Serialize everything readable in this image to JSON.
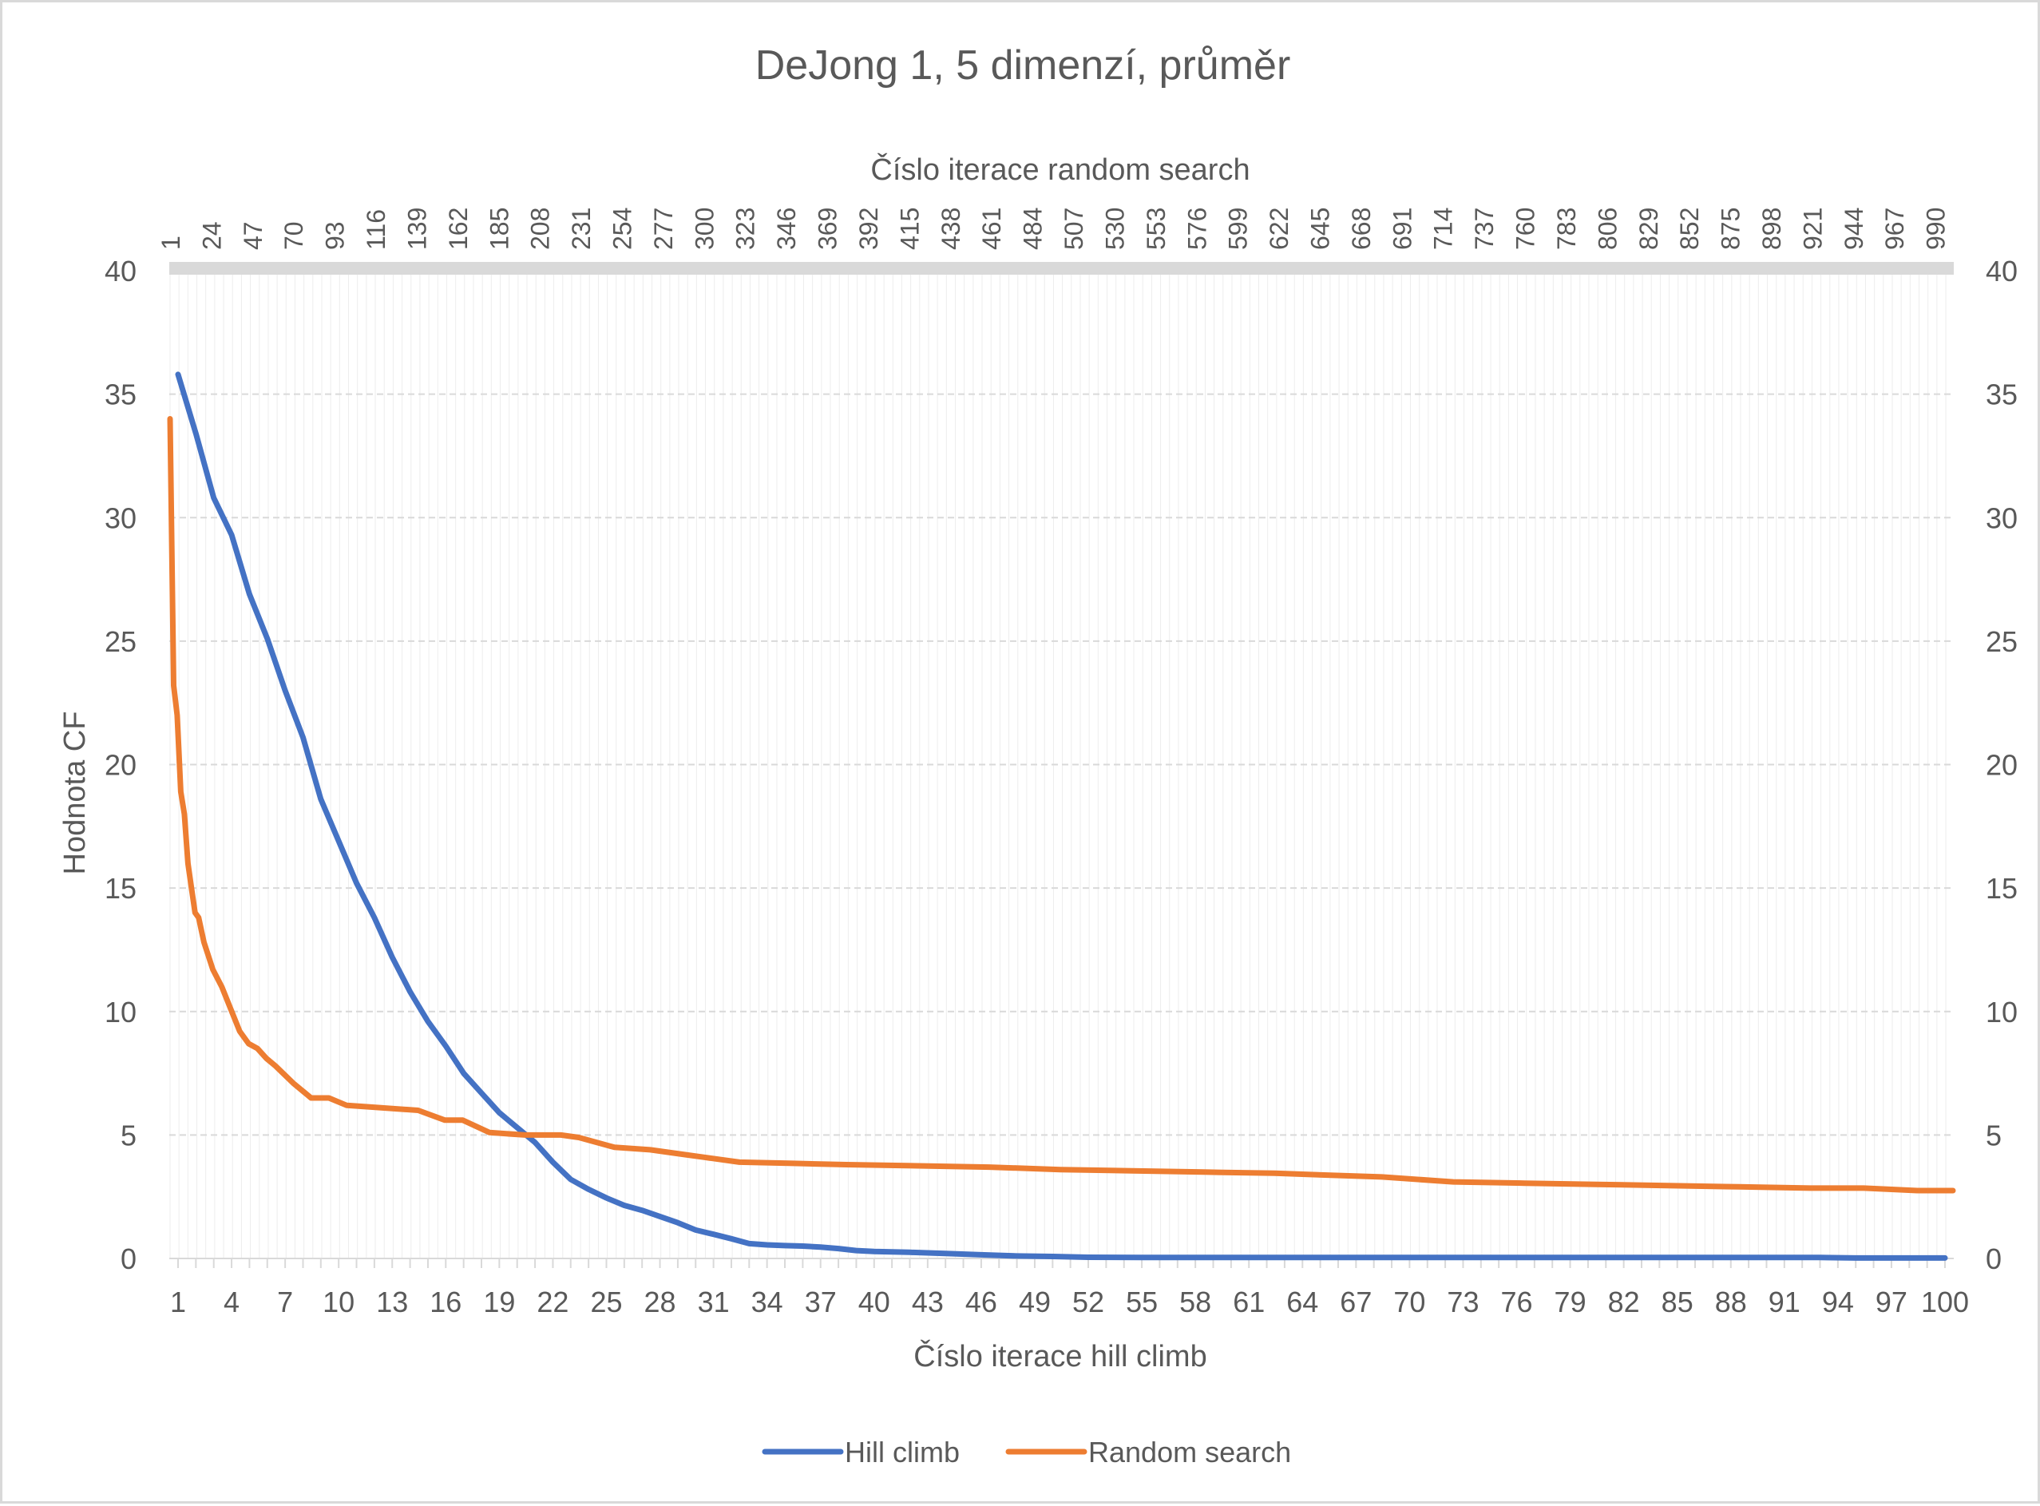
{
  "chart_data": {
    "type": "line",
    "title": "DeJong 1, 5 dimenzí, průměr",
    "xlabel": "Číslo iterace hill climb",
    "x2label": "Číslo iterace random search",
    "ylabel": "Hodnota CF",
    "ylim": [
      0,
      40
    ],
    "y_ticks": [
      0,
      5,
      10,
      15,
      20,
      25,
      30,
      35,
      40
    ],
    "grid": true,
    "legend_position": "bottom",
    "x_range": [
      1,
      100
    ],
    "x_ticks": [
      1,
      4,
      7,
      10,
      13,
      16,
      19,
      22,
      25,
      28,
      31,
      34,
      37,
      40,
      43,
      46,
      49,
      52,
      55,
      58,
      61,
      64,
      67,
      70,
      73,
      76,
      79,
      82,
      85,
      88,
      91,
      94,
      97,
      100
    ],
    "x2_range": [
      1,
      1000
    ],
    "x2_ticks": [
      1,
      24,
      47,
      70,
      93,
      116,
      139,
      162,
      185,
      208,
      231,
      254,
      277,
      300,
      323,
      346,
      369,
      392,
      415,
      438,
      461,
      484,
      507,
      530,
      553,
      576,
      599,
      622,
      645,
      668,
      691,
      714,
      737,
      760,
      783,
      806,
      829,
      852,
      875,
      898,
      921,
      944,
      967,
      990
    ],
    "series": [
      {
        "name": "Hill climb",
        "axis": "primary",
        "color": "#4472c4",
        "x": [
          1,
          2,
          3,
          4,
          5,
          6,
          7,
          8,
          9,
          10,
          11,
          12,
          13,
          14,
          15,
          16,
          17,
          18,
          19,
          20,
          21,
          22,
          23,
          24,
          25,
          26,
          27,
          28,
          29,
          30,
          31,
          32,
          33,
          34,
          35,
          36,
          37,
          38,
          39,
          40,
          42,
          44,
          46,
          48,
          50,
          52,
          55,
          60,
          70,
          80,
          90,
          93,
          95,
          100
        ],
        "y": [
          35.8,
          33.4,
          30.8,
          29.3,
          26.9,
          25.1,
          23.0,
          21.1,
          18.6,
          16.9,
          15.2,
          13.8,
          12.2,
          10.8,
          9.6,
          8.6,
          7.5,
          6.7,
          5.9,
          5.3,
          4.7,
          3.9,
          3.2,
          2.8,
          2.45,
          2.15,
          1.95,
          1.7,
          1.45,
          1.15,
          0.98,
          0.8,
          0.6,
          0.55,
          0.52,
          0.5,
          0.46,
          0.4,
          0.32,
          0.28,
          0.25,
          0.2,
          0.15,
          0.1,
          0.08,
          0.05,
          0.04,
          0.04,
          0.04,
          0.04,
          0.04,
          0.04,
          0.02,
          0.02
        ]
      },
      {
        "name": "Random search",
        "axis": "secondary",
        "color": "#ed7d31",
        "x": [
          1,
          3,
          5,
          7,
          9,
          11,
          13,
          15,
          17,
          20,
          25,
          30,
          35,
          40,
          45,
          50,
          55,
          60,
          70,
          80,
          90,
          100,
          120,
          140,
          155,
          165,
          180,
          200,
          220,
          230,
          250,
          270,
          290,
          300,
          320,
          350,
          380,
          420,
          460,
          500,
          540,
          580,
          620,
          640,
          680,
          720,
          760,
          800,
          840,
          880,
          920,
          950,
          980,
          1000
        ],
        "y": [
          34.0,
          23.2,
          22.0,
          18.9,
          18.0,
          16.0,
          15.0,
          14.0,
          13.8,
          12.8,
          11.7,
          11.0,
          10.1,
          9.2,
          8.7,
          8.5,
          8.1,
          7.8,
          7.1,
          6.5,
          6.5,
          6.2,
          6.1,
          6.0,
          5.6,
          5.6,
          5.1,
          5.0,
          5.0,
          4.9,
          4.5,
          4.4,
          4.2,
          4.1,
          3.9,
          3.85,
          3.8,
          3.75,
          3.7,
          3.6,
          3.55,
          3.5,
          3.45,
          3.4,
          3.3,
          3.1,
          3.05,
          3.0,
          2.95,
          2.9,
          2.85,
          2.85,
          2.75,
          2.75
        ]
      }
    ]
  }
}
